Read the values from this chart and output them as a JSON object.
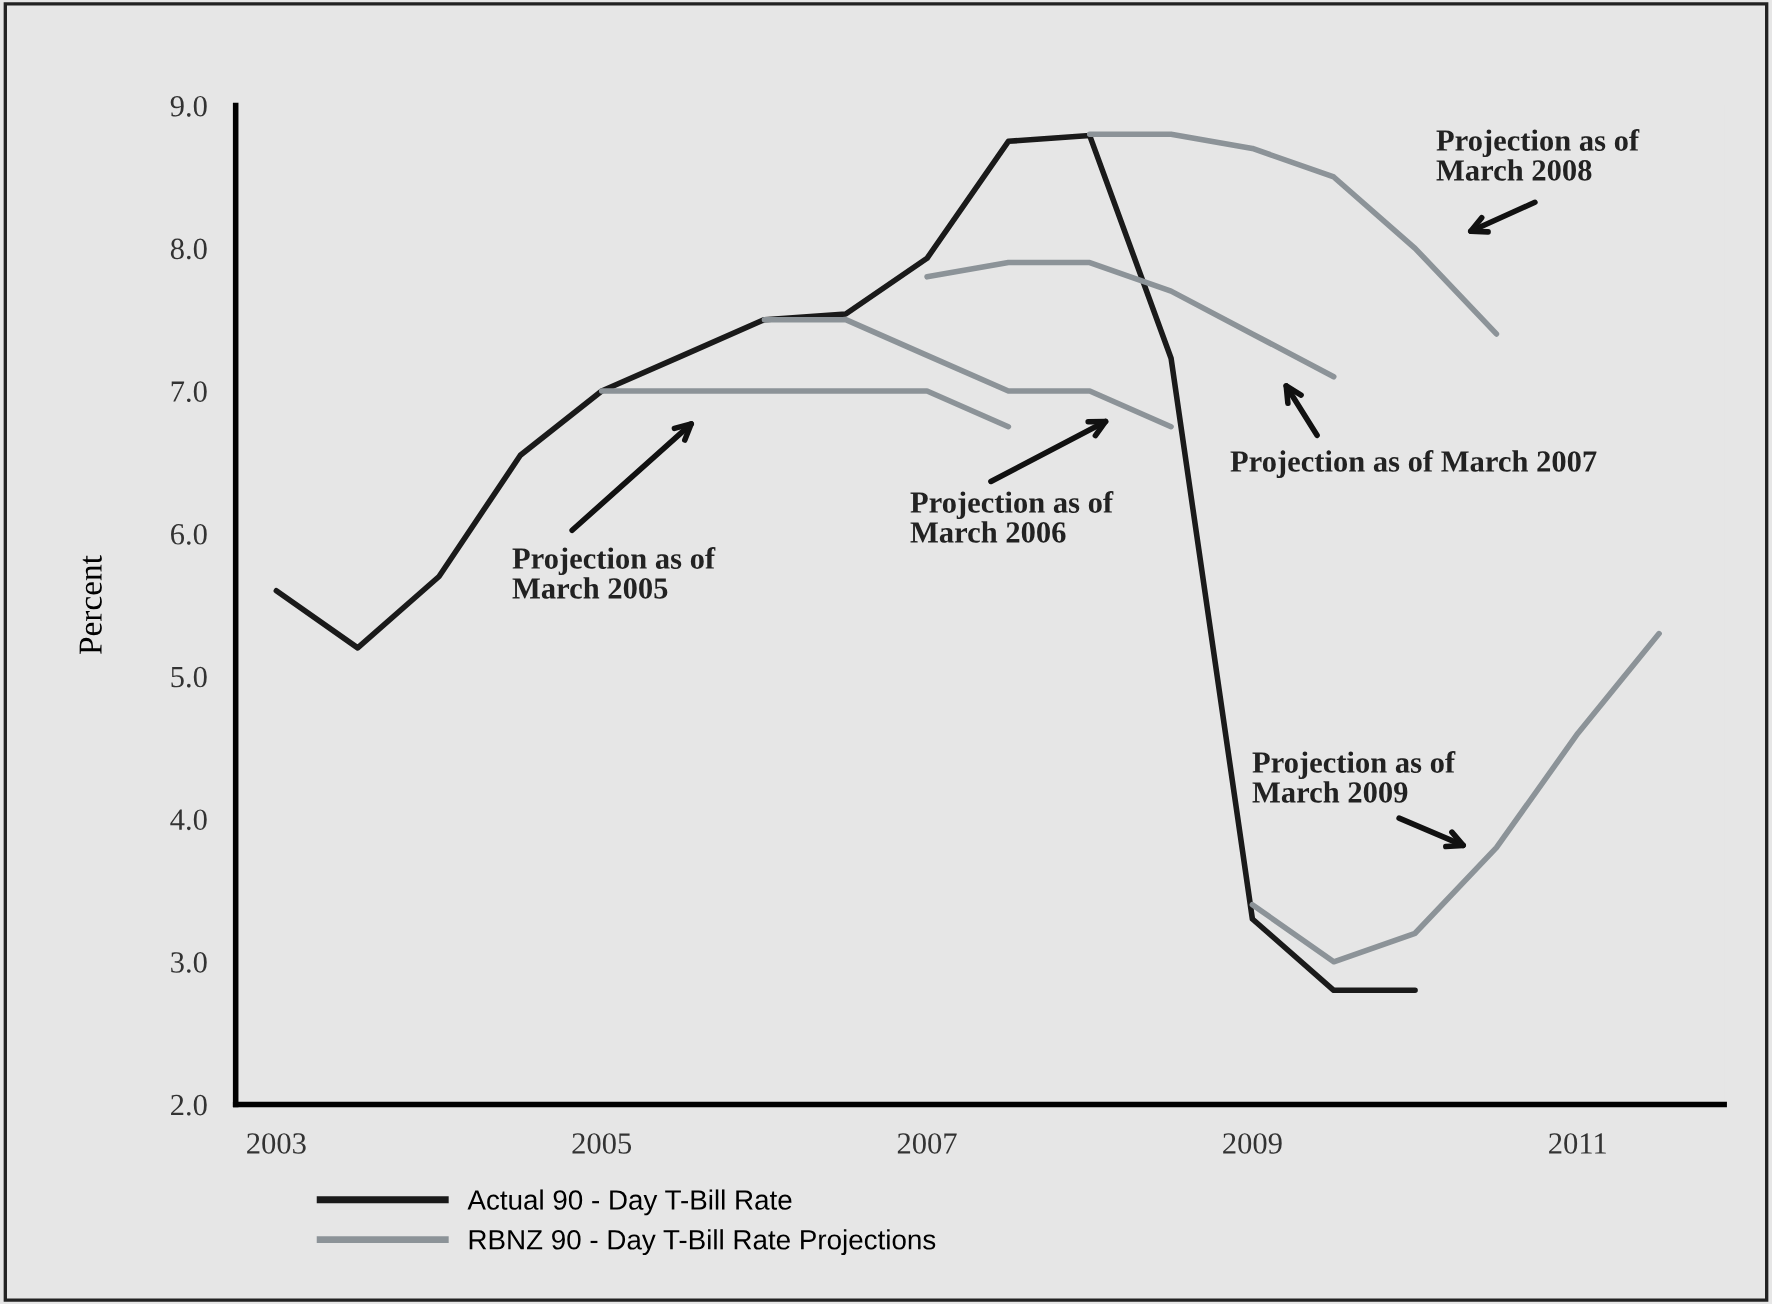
{
  "chart_data": {
    "type": "line",
    "ylabel": "Percent",
    "xlim": [
      2002.75,
      2011.9
    ],
    "xticks": [
      2003,
      2005,
      2007,
      2009,
      2011
    ],
    "ylim": [
      2.0,
      9.0
    ],
    "yticks": [
      {
        "value": 2,
        "label": "2.0"
      },
      {
        "value": 3,
        "label": "3.0"
      },
      {
        "value": 4,
        "label": "4.0"
      },
      {
        "value": 5,
        "label": "5.0"
      },
      {
        "value": 6,
        "label": "6.0"
      },
      {
        "value": 7,
        "label": "7.0"
      },
      {
        "value": 8,
        "label": "8.0"
      },
      {
        "value": 9,
        "label": "9.0"
      }
    ],
    "grid": false,
    "legend": "bottom",
    "line_style": "solid",
    "marker": "none",
    "series": [
      {
        "name": "Actual 90 - Day T-Bill Rate",
        "color": "#1a1a1a",
        "x": [
          2003,
          2003.5,
          2004,
          2004.5,
          2005,
          2005.5,
          2006,
          2006.5,
          2007,
          2007.5,
          2008,
          2008.5,
          2009,
          2009.5,
          2010
        ],
        "values": [
          5.6,
          5.2,
          5.7,
          6.55,
          7.0,
          7.25,
          7.5,
          7.54,
          7.93,
          8.75,
          8.79,
          7.23,
          3.3,
          2.8,
          2.8
        ]
      },
      {
        "name": "RBNZ 90 - Day T-Bill Rate Projections",
        "color": "#8c9398",
        "x": [
          2005,
          2005.5,
          2006,
          2006.5,
          2007,
          2007.5
        ],
        "values": [
          7.0,
          7.0,
          7.0,
          7.0,
          7.0,
          6.75
        ]
      },
      {
        "color": "#8c9398",
        "x": [
          2006,
          2006.5,
          2007,
          2007.5,
          2008,
          2008.5
        ],
        "values": [
          7.5,
          7.5,
          7.25,
          7.0,
          7.0,
          6.75
        ]
      },
      {
        "color": "#8c9398",
        "x": [
          2007,
          2007.5,
          2008,
          2008.5,
          2009,
          2009.5
        ],
        "values": [
          7.8,
          7.9,
          7.9,
          7.7,
          7.4,
          7.1
        ]
      },
      {
        "color": "#8c9398",
        "x": [
          2008,
          2008.5,
          2009,
          2009.5,
          2010,
          2010.5
        ],
        "values": [
          8.8,
          8.8,
          8.7,
          8.5,
          8.0,
          7.4
        ]
      },
      {
        "color": "#8c9398",
        "x": [
          2009,
          2009.5,
          2010,
          2010.5,
          2011,
          2011.5
        ],
        "values": [
          3.4,
          3.0,
          3.2,
          3.8,
          4.6,
          5.3
        ]
      }
    ],
    "annotations": [
      "Projection as of\nMarch 2005",
      "Projection as of\nMarch 2006",
      "Projection as of March 2007",
      "Projection as of\nMarch 2008",
      "Projection as of\nMarch 2009"
    ]
  }
}
